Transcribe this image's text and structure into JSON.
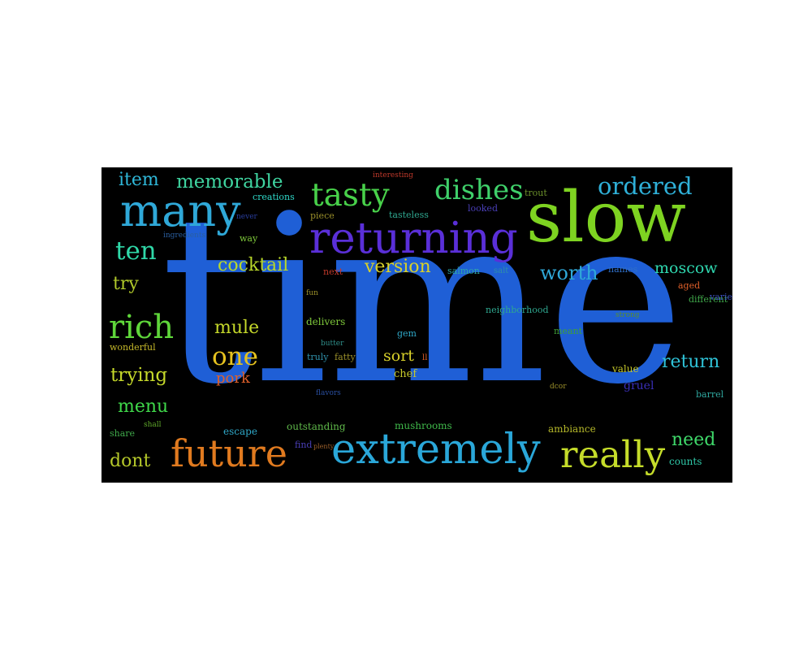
{
  "wordcloud": {
    "words": [
      {
        "id": "time",
        "text": "time",
        "color": "#1f5fd6"
      },
      {
        "id": "slow",
        "text": "slow",
        "color": "#7ed321"
      },
      {
        "id": "returning",
        "text": "returning",
        "color": "#5a2fd8"
      },
      {
        "id": "many",
        "text": "many",
        "color": "#2fa8d8"
      },
      {
        "id": "extremely",
        "text": "extremely",
        "color": "#2aa7d9"
      },
      {
        "id": "future",
        "text": "future",
        "color": "#e07a1f"
      },
      {
        "id": "really",
        "text": "really",
        "color": "#c5dc2a"
      },
      {
        "id": "tasty",
        "text": "tasty",
        "color": "#48d14a"
      },
      {
        "id": "dishes",
        "text": "dishes",
        "color": "#3fd06a"
      },
      {
        "id": "ordered",
        "text": "ordered",
        "color": "#2fb0d8"
      },
      {
        "id": "rich",
        "text": "rich",
        "color": "#5fd63a"
      },
      {
        "id": "ten",
        "text": "ten",
        "color": "#2fd8a8"
      },
      {
        "id": "one",
        "text": "one",
        "color": "#e6c21f"
      },
      {
        "id": "memorable",
        "text": "memorable",
        "color": "#3fd4a0"
      },
      {
        "id": "item",
        "text": "item",
        "color": "#2fb7d8"
      },
      {
        "id": "cocktail",
        "text": "cocktail",
        "color": "#b9d82a"
      },
      {
        "id": "version",
        "text": "version",
        "color": "#d8d02a"
      },
      {
        "id": "worth",
        "text": "worth",
        "color": "#2fa8d8"
      },
      {
        "id": "moscow",
        "text": "moscow",
        "color": "#2fd8b0"
      },
      {
        "id": "return",
        "text": "return",
        "color": "#2fc3d8"
      },
      {
        "id": "need",
        "text": "need",
        "color": "#3fd86a"
      },
      {
        "id": "trying",
        "text": "trying",
        "color": "#c5d82a"
      },
      {
        "id": "mule",
        "text": "mule",
        "color": "#c5d82a"
      },
      {
        "id": "menu",
        "text": "menu",
        "color": "#3fd84a"
      },
      {
        "id": "dont",
        "text": "dont",
        "color": "#b5c82a"
      },
      {
        "id": "try",
        "text": "try",
        "color": "#b0c82a"
      },
      {
        "id": "sort",
        "text": "sort",
        "color": "#d8d02a"
      },
      {
        "id": "pork",
        "text": "pork",
        "color": "#e0602a"
      },
      {
        "id": "creations",
        "text": "creations",
        "color": "#2fd8c8"
      },
      {
        "id": "trout",
        "text": "trout",
        "color": "#6a8f2a"
      },
      {
        "id": "interesting",
        "text": "interesting",
        "color": "#c0392b"
      },
      {
        "id": "never",
        "text": "never",
        "color": "#2a3fa0"
      },
      {
        "id": "piece",
        "text": "piece",
        "color": "#9a8f2a"
      },
      {
        "id": "tasteless",
        "text": "tasteless",
        "color": "#2fa890"
      },
      {
        "id": "looked",
        "text": "looked",
        "color": "#4a3fb8"
      },
      {
        "id": "way",
        "text": "way",
        "color": "#7ec83a"
      },
      {
        "id": "ingredients",
        "text": "ingredients",
        "color": "#2a5fa0"
      },
      {
        "id": "next",
        "text": "next",
        "color": "#c0392b"
      },
      {
        "id": "salmon",
        "text": "salmon",
        "color": "#2fa8a8"
      },
      {
        "id": "salt",
        "text": "salt",
        "color": "#2f8fa8"
      },
      {
        "id": "names",
        "text": "names",
        "color": "#2f6fc8"
      },
      {
        "id": "aged",
        "text": "aged",
        "color": "#e0602a"
      },
      {
        "id": "fun",
        "text": "fun",
        "color": "#9a8f2a"
      },
      {
        "id": "delivers",
        "text": "delivers",
        "color": "#7ec83a"
      },
      {
        "id": "strong",
        "text": "strong",
        "color": "#5a8f2a"
      },
      {
        "id": "wonderful",
        "text": "wonderful",
        "color": "#c5b82a"
      },
      {
        "id": "butter",
        "text": "butter",
        "color": "#2f8f8a"
      },
      {
        "id": "gem",
        "text": "gem",
        "color": "#2fa8c8"
      },
      {
        "id": "truly",
        "text": "truly",
        "color": "#2f8fa8"
      },
      {
        "id": "fatty",
        "text": "fatty",
        "color": "#9a8f2a"
      },
      {
        "id": "ll",
        "text": "ll",
        "color": "#e0602a"
      },
      {
        "id": "chef",
        "text": "chef",
        "color": "#c5c82a"
      },
      {
        "id": "neighborhood",
        "text": "neighborhood",
        "color": "#2fa890"
      },
      {
        "id": "meant",
        "text": "meant",
        "color": "#3f9f3a"
      },
      {
        "id": "value",
        "text": "value",
        "color": "#c5c82a"
      },
      {
        "id": "gruel",
        "text": "gruel",
        "color": "#3a2fb8"
      },
      {
        "id": "different",
        "text": "different",
        "color": "#3fa84a"
      },
      {
        "id": "variety",
        "text": "variety",
        "color": "#3a4fb8"
      },
      {
        "id": "flavors",
        "text": "flavors",
        "color": "#2a4fa0"
      },
      {
        "id": "dcor",
        "text": "dcor",
        "color": "#9a8f2a"
      },
      {
        "id": "share",
        "text": "share",
        "color": "#3fa84a"
      },
      {
        "id": "shall",
        "text": "shall",
        "color": "#5fa82a"
      },
      {
        "id": "escape",
        "text": "escape",
        "color": "#2fa8c8"
      },
      {
        "id": "outstanding",
        "text": "outstanding",
        "color": "#5fb84a"
      },
      {
        "id": "mushrooms",
        "text": "mushrooms",
        "color": "#3fb84a"
      },
      {
        "id": "ambiance",
        "text": "ambiance",
        "color": "#b5b82a"
      },
      {
        "id": "barrel",
        "text": "barrel",
        "color": "#2fa8a0"
      },
      {
        "id": "find",
        "text": "find",
        "color": "#4a3fb8"
      },
      {
        "id": "plenty",
        "text": "plenty",
        "color": "#9a5f2a"
      },
      {
        "id": "counts",
        "text": "counts",
        "color": "#2fc8a8"
      }
    ]
  }
}
